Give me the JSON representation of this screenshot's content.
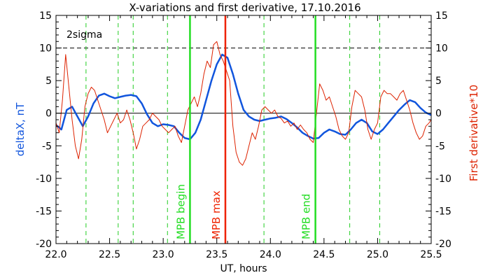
{
  "chart_data": {
    "type": "line",
    "title": "X-variations and first derivative, 17.10.2016",
    "xlabel": "UT, hours",
    "ylabel_left": "deltaX, nT",
    "ylabel_right": "First derivative*10",
    "xlim": [
      22.0,
      25.5
    ],
    "ylim": [
      -20,
      15
    ],
    "x_ticks": [
      "22.0",
      "22.5",
      "23.0",
      "23.5",
      "24.0",
      "24.5",
      "25.0",
      "25.5"
    ],
    "y_ticks": [
      "-20",
      "-15",
      "-10",
      "-5",
      "0",
      "5",
      "10",
      "15"
    ],
    "grid": false,
    "threshold": {
      "label": "2sigma",
      "value": 10
    },
    "zero_line": 0,
    "dashed_vertical_x": [
      22.28,
      22.58,
      22.72,
      23.04,
      23.94,
      24.74,
      25.02
    ],
    "markers": [
      {
        "label": "MPB begin",
        "x": 23.25,
        "color": "#22dd22"
      },
      {
        "label": "MPB max",
        "x": 23.58,
        "color": "#ee2200"
      },
      {
        "label": "MPB end",
        "x": 24.42,
        "color": "#22dd22"
      }
    ],
    "series": [
      {
        "name": "deltaX",
        "axis": "left",
        "color": "#1155dd",
        "x": [
          22.0,
          22.05,
          22.1,
          22.15,
          22.2,
          22.25,
          22.3,
          22.35,
          22.4,
          22.45,
          22.5,
          22.55,
          22.6,
          22.65,
          22.7,
          22.75,
          22.8,
          22.85,
          22.9,
          22.95,
          23.0,
          23.05,
          23.1,
          23.15,
          23.2,
          23.25,
          23.3,
          23.35,
          23.4,
          23.45,
          23.5,
          23.55,
          23.6,
          23.65,
          23.7,
          23.75,
          23.8,
          23.85,
          23.9,
          23.95,
          24.0,
          24.05,
          24.1,
          24.15,
          24.2,
          24.25,
          24.3,
          24.35,
          24.4,
          24.45,
          24.5,
          24.55,
          24.6,
          24.65,
          24.7,
          24.75,
          24.8,
          24.85,
          24.9,
          24.95,
          25.0,
          25.05,
          25.1,
          25.15,
          25.2,
          25.25,
          25.3,
          25.35,
          25.4,
          25.45,
          25.5
        ],
        "values": [
          -1.8,
          -2.5,
          0.5,
          1.0,
          -0.5,
          -2.0,
          -0.5,
          1.5,
          2.7,
          3.0,
          2.6,
          2.3,
          2.5,
          2.7,
          2.8,
          2.6,
          1.5,
          -0.2,
          -1.5,
          -2.0,
          -1.7,
          -1.8,
          -2.0,
          -3.0,
          -3.8,
          -4.0,
          -3.0,
          -1.0,
          2.0,
          5.0,
          7.5,
          9.0,
          8.5,
          6.0,
          3.0,
          0.5,
          -0.5,
          -1.0,
          -1.2,
          -1.0,
          -0.8,
          -0.7,
          -0.5,
          -0.9,
          -1.5,
          -2.2,
          -3.0,
          -3.5,
          -3.9,
          -3.8,
          -3.0,
          -2.5,
          -2.8,
          -3.2,
          -3.3,
          -2.5,
          -1.5,
          -1.0,
          -1.5,
          -2.8,
          -3.2,
          -2.5,
          -1.5,
          -0.5,
          0.5,
          1.3,
          2.0,
          1.7,
          0.8,
          0.1,
          -0.3
        ]
      },
      {
        "name": "First derivative*10",
        "axis": "right",
        "color": "#dd2200",
        "x": [
          22.0,
          22.03,
          22.06,
          22.09,
          22.12,
          22.15,
          22.18,
          22.21,
          22.24,
          22.27,
          22.3,
          22.33,
          22.36,
          22.39,
          22.42,
          22.45,
          22.48,
          22.51,
          22.54,
          22.57,
          22.6,
          22.63,
          22.66,
          22.69,
          22.72,
          22.75,
          22.78,
          22.81,
          22.84,
          22.87,
          22.9,
          22.93,
          22.96,
          22.99,
          23.02,
          23.05,
          23.08,
          23.11,
          23.14,
          23.17,
          23.2,
          23.23,
          23.26,
          23.29,
          23.32,
          23.35,
          23.38,
          23.41,
          23.44,
          23.47,
          23.5,
          23.53,
          23.56,
          23.59,
          23.62,
          23.65,
          23.68,
          23.71,
          23.74,
          23.77,
          23.8,
          23.83,
          23.86,
          23.89,
          23.92,
          23.95,
          23.98,
          24.01,
          24.04,
          24.07,
          24.1,
          24.13,
          24.16,
          24.19,
          24.22,
          24.25,
          24.28,
          24.31,
          24.34,
          24.37,
          24.4,
          24.43,
          24.46,
          24.49,
          24.52,
          24.55,
          24.58,
          24.61,
          24.64,
          24.67,
          24.7,
          24.73,
          24.76,
          24.79,
          24.82,
          24.85,
          24.88,
          24.91,
          24.94,
          24.97,
          25.0,
          25.03,
          25.06,
          25.09,
          25.12,
          25.15,
          25.18,
          25.21,
          25.24,
          25.27,
          25.3,
          25.33,
          25.36,
          25.39,
          25.42,
          25.45,
          25.48,
          25.5
        ],
        "values": [
          -1.5,
          -3.0,
          2.0,
          9.0,
          4.0,
          -1.0,
          -5.0,
          -7.0,
          -4.0,
          1.0,
          3.0,
          4.0,
          3.5,
          2.0,
          0.5,
          -1.0,
          -3.0,
          -2.0,
          -1.0,
          0.0,
          -1.5,
          -1.0,
          0.5,
          -1.0,
          -3.0,
          -5.5,
          -4.0,
          -2.0,
          -1.5,
          -1.0,
          0.0,
          -0.5,
          -1.0,
          -2.0,
          -2.5,
          -3.0,
          -2.5,
          -2.0,
          -3.5,
          -4.5,
          -2.0,
          0.5,
          1.5,
          2.5,
          1.0,
          3.0,
          6.0,
          8.0,
          7.0,
          10.5,
          11.0,
          9.0,
          8.0,
          6.5,
          5.0,
          -2.0,
          -6.0,
          -7.5,
          -8.0,
          -7.0,
          -5.0,
          -3.0,
          -4.0,
          -2.0,
          0.5,
          1.0,
          0.5,
          0.0,
          0.5,
          -0.5,
          -0.8,
          -1.5,
          -1.2,
          -2.0,
          -1.5,
          -2.5,
          -1.8,
          -2.5,
          -3.0,
          -4.0,
          -4.5,
          0.0,
          4.5,
          3.5,
          2.0,
          2.5,
          1.0,
          -0.5,
          -2.5,
          -3.5,
          -4.0,
          -3.0,
          1.0,
          3.5,
          3.0,
          2.5,
          0.5,
          -2.5,
          -4.0,
          -2.5,
          -1.5,
          2.5,
          3.5,
          3.0,
          3.0,
          2.5,
          2.0,
          3.0,
          3.5,
          2.0,
          0.5,
          -1.5,
          -3.0,
          -4.0,
          -3.5,
          -2.0,
          -1.5,
          -1.0
        ]
      }
    ]
  }
}
